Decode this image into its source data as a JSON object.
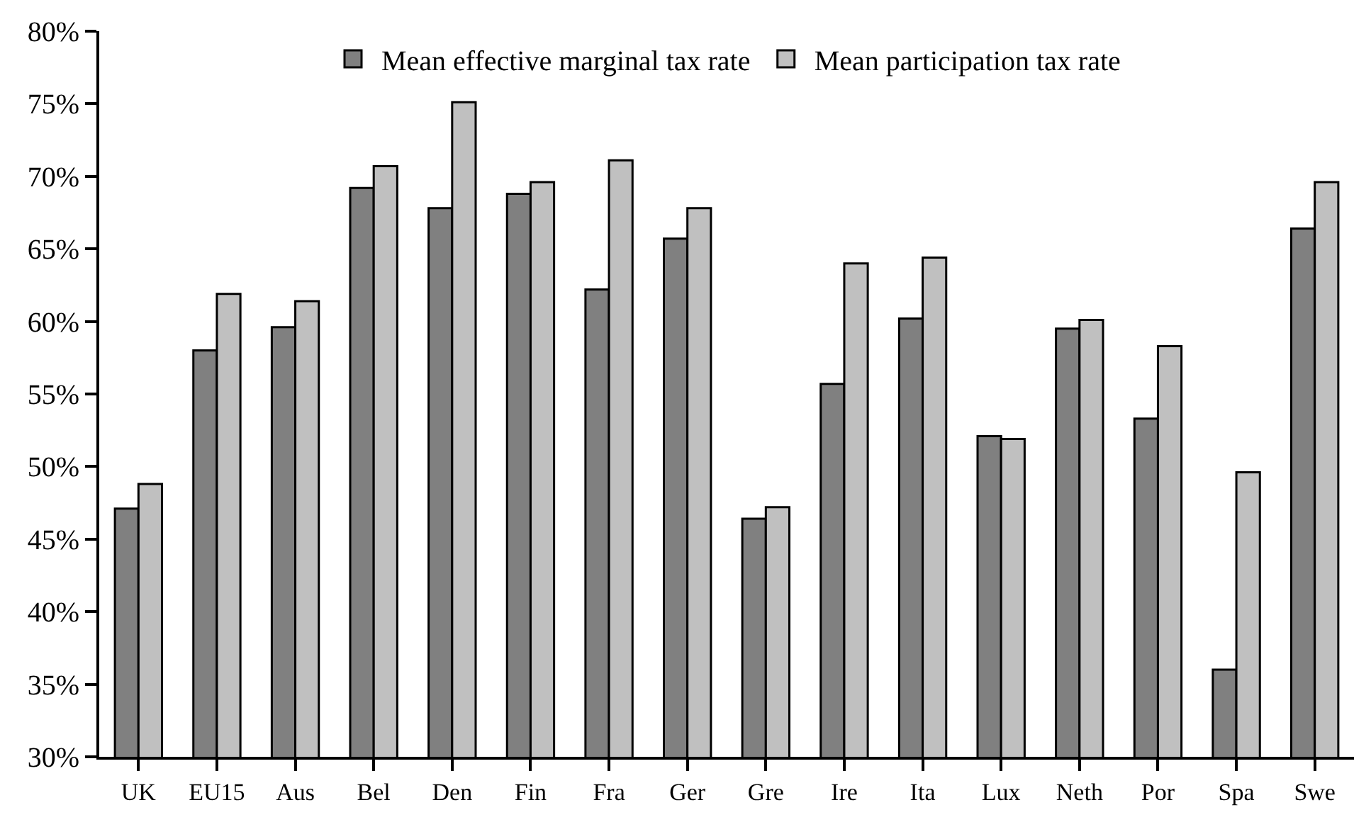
{
  "chart_data": {
    "type": "bar",
    "categories": [
      "UK",
      "EU15",
      "Aus",
      "Bel",
      "Den",
      "Fin",
      "Fra",
      "Ger",
      "Gre",
      "Ire",
      "Ita",
      "Lux",
      "Neth",
      "Por",
      "Spa",
      "Swe"
    ],
    "series": [
      {
        "name": "Mean effective marginal tax rate",
        "color": "#808080",
        "values": [
          47.1,
          58.0,
          59.6,
          69.2,
          67.8,
          68.8,
          62.2,
          65.7,
          46.4,
          55.7,
          60.2,
          52.1,
          59.5,
          53.3,
          36.0,
          66.4
        ]
      },
      {
        "name": "Mean participation tax rate",
        "color": "#c0c0c0",
        "values": [
          48.8,
          61.9,
          61.4,
          70.7,
          75.1,
          69.6,
          71.1,
          67.8,
          47.2,
          64.0,
          64.4,
          51.9,
          60.1,
          58.3,
          49.6,
          69.6
        ]
      }
    ],
    "ylim": [
      30,
      80
    ],
    "yticks": [
      {
        "value": 30,
        "label": "30%"
      },
      {
        "value": 35,
        "label": "35%"
      },
      {
        "value": 40,
        "label": "40%"
      },
      {
        "value": 45,
        "label": "45%"
      },
      {
        "value": 50,
        "label": "50%"
      },
      {
        "value": 55,
        "label": "55%"
      },
      {
        "value": 60,
        "label": "60%"
      },
      {
        "value": 65,
        "label": "65%"
      },
      {
        "value": 70,
        "label": "70%"
      },
      {
        "value": 75,
        "label": "75%"
      },
      {
        "value": 80,
        "label": "80%"
      }
    ],
    "grid": false,
    "legend": "top"
  }
}
